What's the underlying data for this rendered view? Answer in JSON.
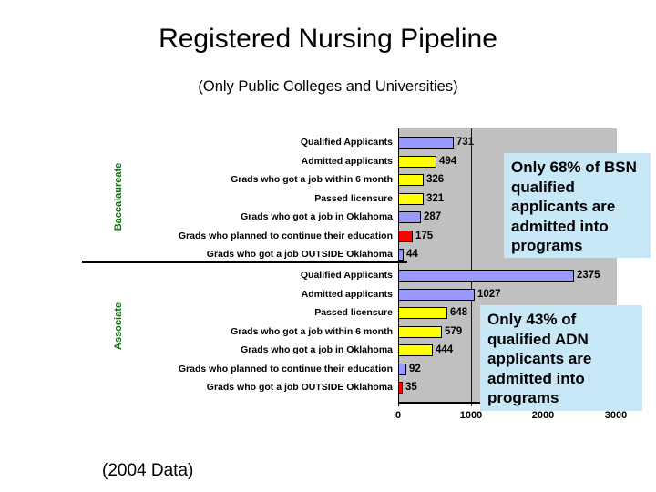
{
  "slide": {
    "title": "Registered Nursing Pipeline",
    "subtitle": "(Only Public Colleges and Universities)",
    "footnote": "(2004 Data)"
  },
  "chart_data": {
    "type": "bar",
    "orientation": "horizontal",
    "x_axis": {
      "min": 0,
      "max": 3000,
      "ticks": [
        0,
        1000,
        2000,
        3000
      ],
      "gridline_at": 1000
    },
    "plot_background": "#c0c0c0",
    "bar_colors": {
      "lavender": "#9999ff",
      "yellow": "#ffff00",
      "red": "#ff0000"
    },
    "group_label_color": "#0a700a",
    "groups": [
      {
        "name": "Baccalaureate",
        "rows": [
          {
            "label": "Qualified Applicants",
            "value": 731,
            "color": "#9999ff"
          },
          {
            "label": "Admitted applicants",
            "value": 494,
            "color": "#ffff00"
          },
          {
            "label": "Grads who got a job within 6 month",
            "value": 326,
            "color": "#ffff00"
          },
          {
            "label": "Passed licensure",
            "value": 321,
            "color": "#ffff00"
          },
          {
            "label": "Grads who got a job in Oklahoma",
            "value": 287,
            "color": "#9999ff"
          },
          {
            "label": "Grads who planned to continue their education",
            "value": 175,
            "color": "#ff0000"
          },
          {
            "label": "Grads who got a job OUTSIDE Oklahoma",
            "value": 44,
            "color": "#9999ff"
          }
        ]
      },
      {
        "name": "Associate",
        "rows": [
          {
            "label": "Qualified Applicants",
            "value": 2375,
            "color": "#9999ff"
          },
          {
            "label": "Admitted applicants",
            "value": 1027,
            "color": "#9999ff"
          },
          {
            "label": "Passed licensure",
            "value": 648,
            "color": "#ffff00"
          },
          {
            "label": "Grads who got a job within 6 month",
            "value": 579,
            "color": "#ffff00"
          },
          {
            "label": "Grads who got a job in Oklahoma",
            "value": 444,
            "color": "#ffff00"
          },
          {
            "label": "Grads who planned to continue their education",
            "value": 92,
            "color": "#9999ff"
          },
          {
            "label": "Grads who got a job OUTSIDE Oklahoma",
            "value": 35,
            "color": "#ff0000"
          }
        ]
      }
    ]
  },
  "callouts": {
    "bsn": {
      "text": "Only 68% of BSN\nqualified\napplicants are\nadmitted into\nprograms",
      "background": "#c8e8f7"
    },
    "adn": {
      "text": "Only 43% of\nqualified ADN\napplicants are\nadmitted into\nprograms",
      "background": "#c8e8f7"
    }
  }
}
